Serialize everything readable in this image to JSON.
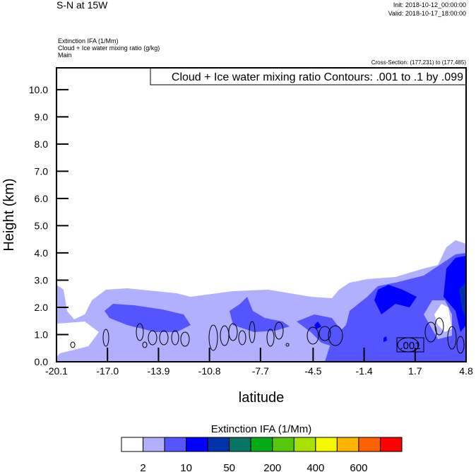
{
  "header": {
    "title": "S-N at 15W",
    "init": "Init: 2018-10-12_00:00:00",
    "valid": "Valid: 2018-10-17_18:00:00",
    "field1": "Extinction IFA   (1/Mm)",
    "field2": "Cloud + Ice water mixing ratio   (g/kg)",
    "field3": "Main",
    "cross_section": "Cross-Section: (177,231) to (177,485)"
  },
  "chart_data": {
    "type": "heatmap",
    "title": "S-N at 15W",
    "contour_info": "Cloud + Ice water mixing ratio Contours: .001 to .1 by .099",
    "contour_label": ".001",
    "xlabel": "latitude",
    "ylabel": "Height (km)",
    "xlim": [
      -20.1,
      4.8
    ],
    "ylim": [
      0,
      10.8
    ],
    "xticks": [
      "-20.1",
      "-17.0",
      "-13.9",
      "-10.8",
      "-7.7",
      "-4.5",
      "-1.4",
      "1.7",
      "4.8"
    ],
    "xtick_values": [
      -20.1,
      -17.0,
      -13.9,
      -10.8,
      -7.7,
      -4.5,
      -1.4,
      1.7,
      4.8
    ],
    "yticks": [
      "0.0",
      "1.0",
      "2.0",
      "3.0",
      "4.0",
      "5.0",
      "6.0",
      "7.0",
      "8.0",
      "9.0",
      "10.0"
    ],
    "ytick_values": [
      0,
      1,
      2,
      3,
      4,
      5,
      6,
      7,
      8,
      9,
      10
    ],
    "colorbar": {
      "title": "Extinction IFA  (1/Mm)",
      "colors": [
        "#ffffff",
        "#b0b0ff",
        "#5555ff",
        "#0000ff",
        "#0033aa",
        "#087564",
        "#06aa16",
        "#54c80c",
        "#a8e205",
        "#f4f900",
        "#ffb400",
        "#ff6000",
        "#ff0000"
      ],
      "labels": [
        "2",
        "10",
        "50",
        "200",
        "400",
        "600"
      ]
    }
  }
}
